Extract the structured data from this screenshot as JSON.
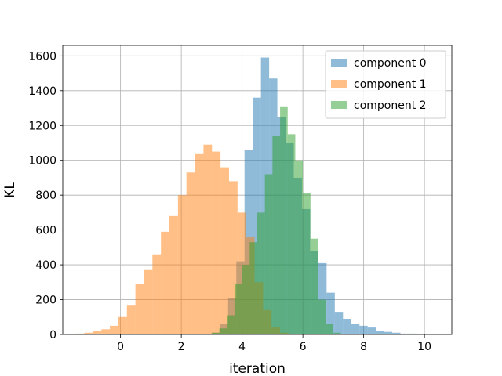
{
  "chart_data": {
    "type": "bar",
    "title": "",
    "xlabel": "iteration",
    "ylabel": "KL",
    "xlim": [
      -1.9,
      10.9
    ],
    "ylim": [
      0,
      1660
    ],
    "x_ticks": [
      0,
      2,
      4,
      6,
      8,
      10
    ],
    "y_ticks": [
      0,
      200,
      400,
      600,
      800,
      1000,
      1200,
      1400,
      1600
    ],
    "grid": true,
    "legend_position": "top-right",
    "series": [
      {
        "name": "component 0",
        "color": "#1f77b4",
        "opacity": 0.5,
        "bin_width": 0.27,
        "bin_starts": [
          3.0,
          3.27,
          3.54,
          3.81,
          4.08,
          4.35,
          4.62,
          4.89,
          5.16,
          5.43,
          5.7,
          5.97,
          6.24,
          6.51,
          6.78,
          7.05,
          7.32,
          7.59,
          7.86,
          8.13,
          8.4,
          8.67,
          8.94,
          9.21,
          9.48,
          9.75,
          10.02
        ],
        "values": [
          10,
          60,
          210,
          420,
          1060,
          1360,
          1590,
          1470,
          1250,
          1100,
          900,
          720,
          480,
          410,
          240,
          130,
          90,
          60,
          50,
          40,
          20,
          15,
          10,
          5,
          5,
          3,
          2
        ]
      },
      {
        "name": "component 1",
        "color": "#ff7f0e",
        "opacity": 0.5,
        "bin_width": 0.28,
        "bin_starts": [
          -1.75,
          -1.47,
          -1.19,
          -0.91,
          -0.63,
          -0.35,
          -0.07,
          0.21,
          0.49,
          0.77,
          1.05,
          1.33,
          1.61,
          1.89,
          2.17,
          2.45,
          2.73,
          3.01,
          3.29,
          3.57,
          3.85,
          4.13,
          4.41,
          4.69,
          4.97,
          5.25
        ],
        "values": [
          2,
          5,
          10,
          20,
          30,
          50,
          100,
          170,
          290,
          370,
          460,
          590,
          680,
          800,
          930,
          1040,
          1090,
          1050,
          960,
          880,
          700,
          560,
          300,
          140,
          40,
          10
        ]
      },
      {
        "name": "component 2",
        "color": "#2ca02c",
        "opacity": 0.5,
        "bin_width": 0.25,
        "bin_starts": [
          2.75,
          3.0,
          3.25,
          3.5,
          3.75,
          4.0,
          4.25,
          4.5,
          4.75,
          5.0,
          5.25,
          5.5,
          5.75,
          6.0,
          6.25,
          6.5,
          6.75,
          7.0
        ],
        "values": [
          3,
          10,
          35,
          110,
          290,
          400,
          530,
          700,
          920,
          1140,
          1310,
          1150,
          1000,
          810,
          550,
          200,
          60,
          10
        ]
      }
    ]
  }
}
